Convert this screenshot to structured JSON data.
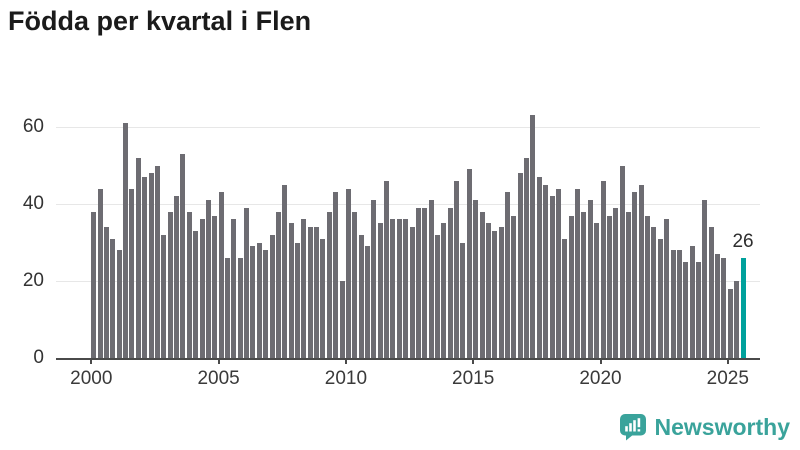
{
  "title": "Födda per kvartal i Flen",
  "colors": {
    "bar": "#6d6c72",
    "accent": "#00a19c",
    "gridline": "#e7e7e7",
    "axis": "#4a4a4a",
    "brand": "#3aa39b"
  },
  "annotation_label": "26",
  "branding": {
    "name": "Newsworthy"
  },
  "chart_data": {
    "type": "bar",
    "title": "Födda per kvartal i Flen",
    "xlabel": "",
    "ylabel": "",
    "ylim": [
      0,
      65
    ],
    "yticks": [
      0,
      20,
      40,
      60
    ],
    "xticks": [
      2000,
      2005,
      2010,
      2015,
      2020,
      2025
    ],
    "grid": "horizontal",
    "legend": "none",
    "highlight": {
      "position": "last",
      "value": 26,
      "label": "26",
      "color": "#00a19c"
    },
    "values_by_year": [
      {
        "year": 2000,
        "values": [
          38,
          44,
          34,
          31
        ]
      },
      {
        "year": 2001,
        "values": [
          28,
          61,
          44,
          52
        ]
      },
      {
        "year": 2002,
        "values": [
          47,
          48,
          50,
          32
        ]
      },
      {
        "year": 2003,
        "values": [
          38,
          42,
          53,
          38
        ]
      },
      {
        "year": 2004,
        "values": [
          33,
          36,
          41,
          37
        ]
      },
      {
        "year": 2005,
        "values": [
          43,
          26,
          36,
          26
        ]
      },
      {
        "year": 2006,
        "values": [
          39,
          29,
          30,
          28
        ]
      },
      {
        "year": 2007,
        "values": [
          32,
          38,
          45,
          35
        ]
      },
      {
        "year": 2008,
        "values": [
          30,
          36,
          34,
          34
        ]
      },
      {
        "year": 2009,
        "values": [
          31,
          38,
          43,
          20
        ]
      },
      {
        "year": 2010,
        "values": [
          44,
          38,
          32,
          29
        ]
      },
      {
        "year": 2011,
        "values": [
          41,
          35,
          46,
          36
        ]
      },
      {
        "year": 2012,
        "values": [
          36,
          36,
          34,
          39
        ]
      },
      {
        "year": 2013,
        "values": [
          39,
          41,
          32,
          35
        ]
      },
      {
        "year": 2014,
        "values": [
          39,
          46,
          30,
          49
        ]
      },
      {
        "year": 2015,
        "values": [
          41,
          38,
          35,
          33
        ]
      },
      {
        "year": 2016,
        "values": [
          34,
          43,
          37,
          48
        ]
      },
      {
        "year": 2017,
        "values": [
          52,
          63,
          47,
          45
        ]
      },
      {
        "year": 2018,
        "values": [
          42,
          44,
          31,
          37
        ]
      },
      {
        "year": 2019,
        "values": [
          44,
          38,
          41,
          35
        ]
      },
      {
        "year": 2020,
        "values": [
          46,
          37,
          39,
          50
        ]
      },
      {
        "year": 2021,
        "values": [
          38,
          43,
          45,
          37
        ]
      },
      {
        "year": 2022,
        "values": [
          34,
          31,
          36,
          28
        ]
      },
      {
        "year": 2023,
        "values": [
          28,
          25,
          29,
          25
        ]
      },
      {
        "year": 2024,
        "values": [
          41,
          34,
          27,
          26
        ]
      },
      {
        "year": 2025,
        "values": [
          18,
          20,
          26
        ]
      }
    ]
  }
}
